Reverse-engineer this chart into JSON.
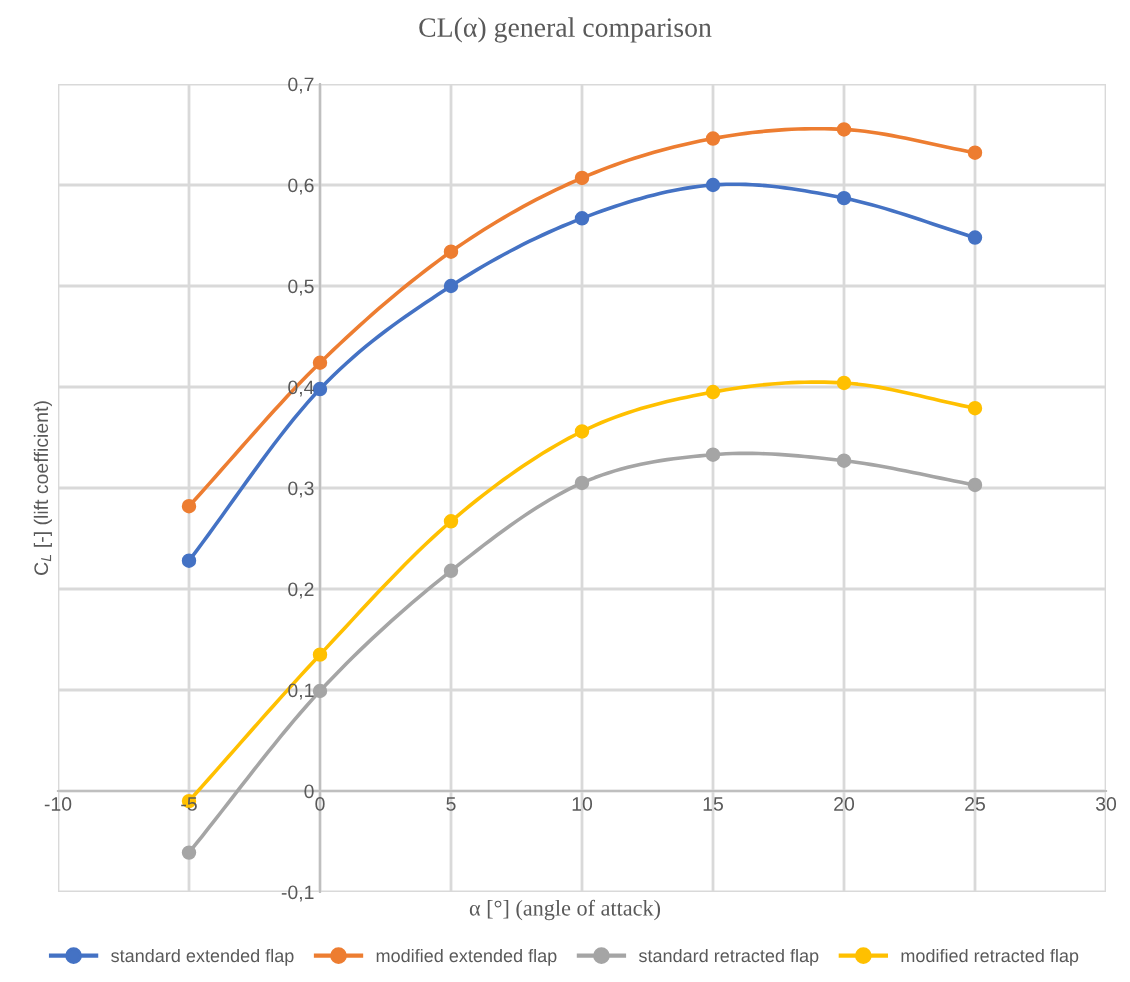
{
  "chart_data": {
    "type": "line",
    "title": "CL(α) general comparison",
    "xlabel": "α [°] (angle of attack)",
    "ylabel": "C$_{L}$ [-] (lift coefficient)",
    "x": [
      -5,
      0,
      5,
      10,
      15,
      20,
      25
    ],
    "series": [
      {
        "name": "standard extended flap",
        "color": "#4472c4",
        "values": [
          0.228,
          0.398,
          0.5,
          0.567,
          0.6,
          0.587,
          0.548
        ]
      },
      {
        "name": "modified extended flap",
        "color": "#ed7d31",
        "values": [
          0.282,
          0.424,
          0.534,
          0.607,
          0.646,
          0.655,
          0.632
        ]
      },
      {
        "name": "standard retracted flap",
        "color": "#a5a5a5",
        "values": [
          -0.061,
          0.099,
          0.218,
          0.305,
          0.333,
          0.327,
          0.303
        ]
      },
      {
        "name": "modified retracted flap",
        "color": "#ffc000",
        "values": [
          -0.01,
          0.135,
          0.267,
          0.356,
          0.395,
          0.404,
          0.379
        ]
      }
    ],
    "xlim": [
      -10,
      30
    ],
    "xticks": [
      -10,
      -5,
      0,
      5,
      10,
      15,
      20,
      25,
      30
    ],
    "ylim": [
      -0.1,
      0.7
    ],
    "yticks": [
      {
        "value": -0.1,
        "label": "-0,1"
      },
      {
        "value": 0,
        "label": "0"
      },
      {
        "value": 0.1,
        "label": "0,1"
      },
      {
        "value": 0.2,
        "label": "0,2"
      },
      {
        "value": 0.3,
        "label": "0,3"
      },
      {
        "value": 0.4,
        "label": "0,4"
      },
      {
        "value": 0.5,
        "label": "0,5"
      },
      {
        "value": 0.6,
        "label": "0,6"
      },
      {
        "value": 0.7,
        "label": "0,7"
      }
    ],
    "grid": true,
    "legend": "bottom",
    "marker": "circle",
    "line_style": "solid"
  }
}
